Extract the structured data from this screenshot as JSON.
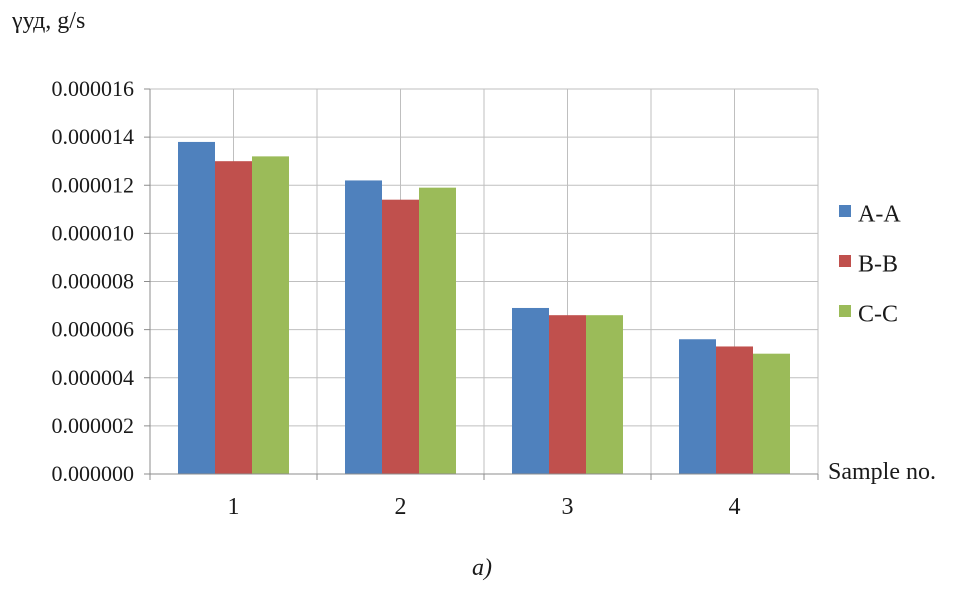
{
  "chart_data": {
    "type": "bar",
    "ylabel": "γуд, g/s",
    "xlabel": "Sample no.",
    "caption": "a)",
    "categories": [
      "1",
      "2",
      "3",
      "4"
    ],
    "ylim": [
      0,
      1.6e-05
    ],
    "yticks": [
      0,
      2e-06,
      4e-06,
      6e-06,
      8e-06,
      1e-05,
      1.2e-05,
      1.4e-05,
      1.6e-05
    ],
    "ytick_labels": [
      "0.000000",
      "0.000002",
      "0.000004",
      "0.000006",
      "0.000008",
      "0.000010",
      "0.000012",
      "0.000014",
      "0.000016"
    ],
    "grid": true,
    "legend": "right",
    "series": [
      {
        "name": "A-A",
        "color": "#4f81bd",
        "values": [
          1.38e-05,
          1.22e-05,
          6.9e-06,
          5.6e-06
        ]
      },
      {
        "name": "B-B",
        "color": "#c0504d",
        "values": [
          1.3e-05,
          1.14e-05,
          6.6e-06,
          5.3e-06
        ]
      },
      {
        "name": "C-C",
        "color": "#9bbb59",
        "values": [
          1.32e-05,
          1.19e-05,
          6.6e-06,
          5e-06
        ]
      }
    ]
  }
}
